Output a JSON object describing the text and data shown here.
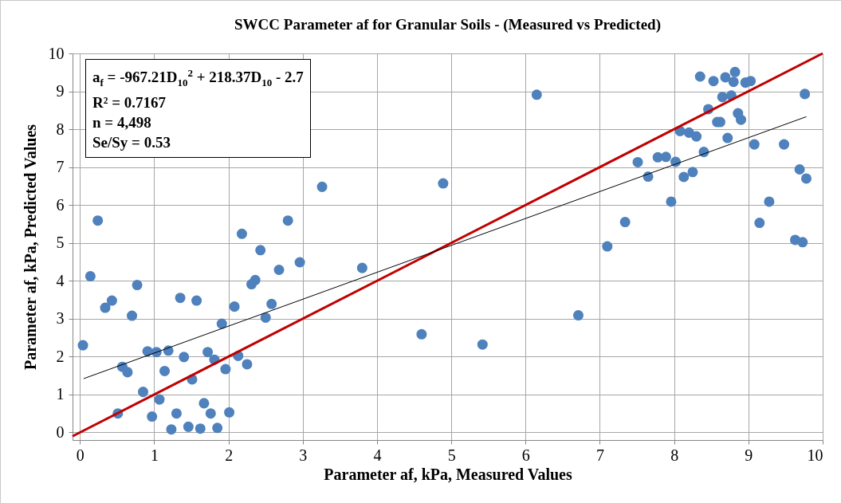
{
  "chart_data": {
    "type": "scatter",
    "title": "SWCC Parameter af for Granular Soils - (Measured vs Predicted)",
    "xlabel": "Parameter af, kPa, Measured Values",
    "ylabel": "Parameter af, kPa, Predicted Values",
    "annotations": [
      "a$_{f}$ = -967.21D$_{10}$$^{2}$ + 218.37D$_{10}$ - 2.7",
      "R² = 0.7167",
      "n = 4,498",
      "Se/Sy = 0.53"
    ],
    "xlim": [
      -0.1,
      10
    ],
    "ylim": [
      -0.2,
      10
    ],
    "xticks": [
      0,
      1,
      2,
      3,
      4,
      5,
      6,
      7,
      8,
      9,
      10
    ],
    "yticks": [
      0,
      1,
      2,
      3,
      4,
      5,
      6,
      7,
      8,
      9,
      10
    ],
    "grid": true,
    "series": [
      {
        "marker": "circle",
        "color": "#4f81bd",
        "x": [
          3.26,
          0.24,
          2.18,
          2.8,
          2.43,
          2.96,
          2.68,
          0.14,
          2.36,
          2.31,
          0.77,
          0.43,
          0.34,
          1.35,
          1.57,
          0.7,
          2.08,
          2.58,
          2.5,
          1.91,
          0.04,
          0.91,
          1.03,
          1.19,
          1.4,
          1.72,
          1.81,
          2.13,
          2.25,
          1.96,
          0.57,
          0.64,
          1.14,
          1.51,
          0.85,
          1.07,
          1.67,
          0.51,
          0.97,
          1.3,
          1.76,
          2.01,
          1.23,
          1.46,
          1.62,
          1.85,
          3.8,
          4.6,
          4.89,
          5.42,
          6.15,
          6.71,
          8.35,
          8.53,
          8.69,
          8.82,
          8.8,
          8.96,
          9.03,
          9.76,
          8.65,
          8.77,
          8.46,
          8.86,
          8.9,
          8.58,
          8.62,
          8.08,
          8.2,
          8.3,
          8.72,
          9.08,
          9.48,
          8.4,
          7.51,
          7.78,
          7.89,
          8.02,
          7.65,
          8.13,
          8.25,
          9.69,
          9.78,
          7.96,
          9.28,
          7.34,
          9.15,
          7.1,
          9.63,
          9.73
        ],
        "values": [
          6.48,
          5.59,
          5.24,
          5.59,
          4.81,
          4.49,
          4.29,
          4.12,
          4.02,
          3.91,
          3.89,
          3.48,
          3.29,
          3.55,
          3.48,
          3.08,
          3.32,
          3.39,
          3.03,
          2.87,
          2.3,
          2.14,
          2.12,
          2.16,
          1.99,
          2.12,
          1.92,
          2.02,
          1.8,
          1.67,
          1.73,
          1.59,
          1.62,
          1.4,
          1.07,
          0.87,
          0.77,
          0.5,
          0.42,
          0.5,
          0.5,
          0.53,
          0.08,
          0.15,
          0.1,
          0.12,
          4.34,
          2.59,
          6.57,
          2.32,
          8.91,
          3.09,
          9.39,
          9.27,
          9.37,
          9.51,
          9.25,
          9.23,
          9.27,
          8.93,
          8.85,
          8.89,
          8.53,
          8.42,
          8.25,
          8.19,
          8.19,
          7.95,
          7.91,
          7.81,
          7.77,
          7.6,
          7.6,
          7.4,
          7.13,
          7.26,
          7.27,
          7.14,
          6.75,
          6.74,
          6.87,
          6.94,
          6.7,
          6.09,
          6.09,
          5.55,
          5.53,
          4.91,
          5.08,
          5.02
        ]
      },
      {
        "type": "line",
        "marker": "none",
        "color": "#c00000",
        "x": [
          -0.1,
          10
        ],
        "values": [
          -0.1,
          10
        ]
      },
      {
        "type": "line",
        "marker": "none",
        "color": "#000000",
        "x": [
          0.05,
          9.78
        ],
        "values": [
          1.42,
          8.33
        ]
      }
    ]
  }
}
